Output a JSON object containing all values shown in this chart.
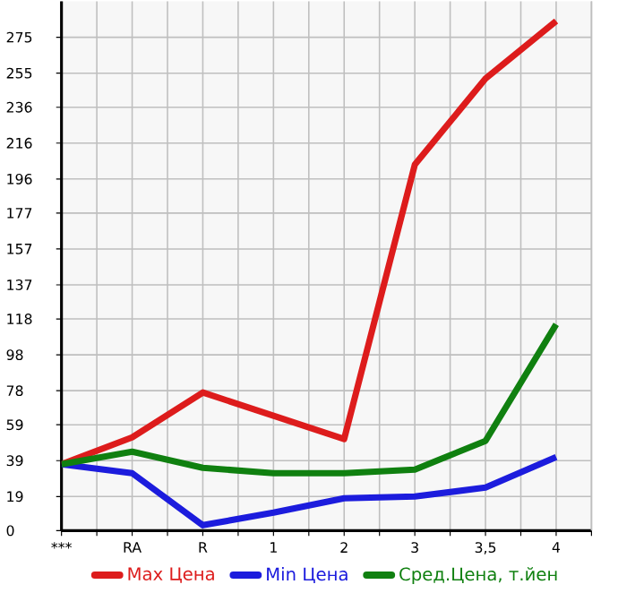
{
  "chart_data": {
    "type": "line",
    "categories": [
      "***",
      "RA",
      "R",
      "1",
      "2",
      "3",
      "3,5",
      "4"
    ],
    "series": [
      {
        "name": "Max Цена",
        "color": "#dd1c1c",
        "values": [
          37,
          52,
          77,
          64,
          51,
          204,
          252,
          284
        ]
      },
      {
        "name": "Min Цена",
        "color": "#1c1cdd",
        "values": [
          37,
          32,
          3,
          10,
          18,
          19,
          24,
          41
        ]
      },
      {
        "name": "Сред.Цена, т.йен",
        "color": "#108010",
        "values": [
          37,
          44,
          35,
          32,
          32,
          34,
          50,
          115
        ]
      }
    ],
    "ylim": [
      0,
      295
    ],
    "yticks": [
      0,
      19,
      39,
      59,
      78,
      98,
      118,
      137,
      157,
      177,
      196,
      216,
      236,
      255,
      275
    ],
    "grid": true,
    "legend": "bottom",
    "marker": "none",
    "line_style": "solid"
  }
}
